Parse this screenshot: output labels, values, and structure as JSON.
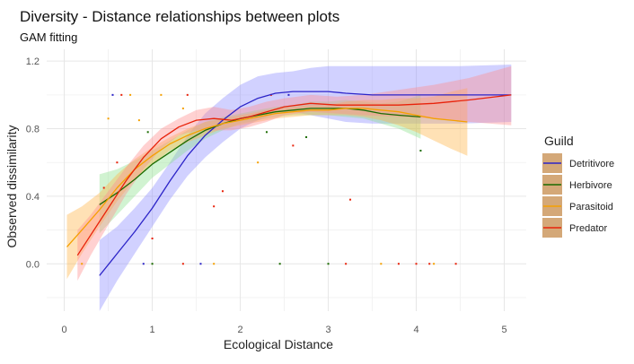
{
  "chart_data": {
    "type": "line",
    "title": "Diversity - Distance relationships between plots",
    "subtitle": "GAM fitting",
    "xlabel": "Ecological Distance",
    "ylabel": "Observed dissimilarity",
    "xlim": [
      -0.2,
      5.25
    ],
    "ylim": [
      -0.28,
      1.27
    ],
    "x_ticks": [
      0,
      1,
      2,
      3,
      4,
      5
    ],
    "y_ticks": [
      0.0,
      0.4,
      0.8,
      1.2
    ],
    "x_tick_labels": [
      "0",
      "1",
      "2",
      "3",
      "4",
      "5"
    ],
    "y_tick_labels": [
      "0.0",
      "0.4",
      "0.8",
      "1.2"
    ],
    "grid": true,
    "legend": {
      "title": "Guild",
      "position": "right"
    },
    "series": [
      {
        "name": "Detritivore",
        "color": "#2c24c8",
        "band_color": "#8c8cff",
        "x": [
          0.4,
          0.6,
          0.8,
          1.0,
          1.2,
          1.4,
          1.6,
          1.8,
          2.0,
          2.2,
          2.4,
          2.6,
          2.8,
          3.0,
          3.2,
          3.5,
          4.0,
          4.5,
          5.08
        ],
        "y": [
          -0.07,
          0.06,
          0.19,
          0.33,
          0.49,
          0.64,
          0.76,
          0.85,
          0.93,
          0.98,
          1.01,
          1.02,
          1.02,
          1.02,
          1.01,
          1.0,
          1.0,
          1.0,
          1.0
        ],
        "lower": [
          -0.28,
          -0.1,
          0.06,
          0.22,
          0.38,
          0.52,
          0.63,
          0.72,
          0.8,
          0.85,
          0.89,
          0.9,
          0.88,
          0.86,
          0.84,
          0.83,
          0.83,
          0.83,
          0.84
        ],
        "upper": [
          0.14,
          0.22,
          0.33,
          0.45,
          0.6,
          0.76,
          0.89,
          0.98,
          1.06,
          1.11,
          1.13,
          1.14,
          1.16,
          1.17,
          1.17,
          1.17,
          1.17,
          1.17,
          1.18
        ]
      },
      {
        "name": "Herbivore",
        "color": "#1a6b00",
        "band_color": "#8ce08c",
        "x": [
          0.4,
          0.6,
          0.8,
          1.0,
          1.2,
          1.4,
          1.6,
          1.8,
          2.0,
          2.2,
          2.4,
          2.6,
          2.8,
          3.0,
          3.2,
          3.4,
          3.6,
          3.8,
          4.05
        ],
        "y": [
          0.35,
          0.42,
          0.5,
          0.59,
          0.66,
          0.73,
          0.79,
          0.83,
          0.86,
          0.88,
          0.9,
          0.91,
          0.92,
          0.92,
          0.92,
          0.91,
          0.89,
          0.88,
          0.87
        ],
        "lower": [
          0.18,
          0.29,
          0.4,
          0.51,
          0.59,
          0.67,
          0.74,
          0.79,
          0.83,
          0.85,
          0.87,
          0.88,
          0.88,
          0.88,
          0.87,
          0.86,
          0.83,
          0.8,
          0.74
        ],
        "upper": [
          0.53,
          0.56,
          0.61,
          0.67,
          0.73,
          0.79,
          0.84,
          0.87,
          0.89,
          0.91,
          0.93,
          0.94,
          0.96,
          0.96,
          0.97,
          0.96,
          0.95,
          0.96,
          1.0
        ]
      },
      {
        "name": "Parasitoid",
        "color": "#f5a000",
        "band_color": "#ffb347",
        "x": [
          0.03,
          0.2,
          0.4,
          0.6,
          0.8,
          1.0,
          1.2,
          1.4,
          1.6,
          1.8,
          2.0,
          2.2,
          2.4,
          2.6,
          2.8,
          3.0,
          3.2,
          3.4,
          3.6,
          3.8,
          4.0,
          4.2,
          4.4,
          4.58
        ],
        "y": [
          0.1,
          0.2,
          0.32,
          0.45,
          0.56,
          0.64,
          0.71,
          0.76,
          0.8,
          0.83,
          0.85,
          0.87,
          0.89,
          0.9,
          0.91,
          0.91,
          0.92,
          0.92,
          0.91,
          0.9,
          0.88,
          0.86,
          0.85,
          0.84
        ],
        "lower": [
          -0.09,
          0.06,
          0.22,
          0.37,
          0.5,
          0.59,
          0.67,
          0.72,
          0.76,
          0.8,
          0.82,
          0.84,
          0.86,
          0.87,
          0.88,
          0.88,
          0.88,
          0.87,
          0.85,
          0.82,
          0.78,
          0.73,
          0.68,
          0.64
        ],
        "upper": [
          0.29,
          0.34,
          0.42,
          0.53,
          0.62,
          0.69,
          0.75,
          0.8,
          0.84,
          0.86,
          0.88,
          0.9,
          0.92,
          0.93,
          0.94,
          0.94,
          0.96,
          0.97,
          0.97,
          0.98,
          0.98,
          0.99,
          1.02,
          1.04
        ]
      },
      {
        "name": "Predator",
        "color": "#e8220a",
        "band_color": "#ff8c8c",
        "x": [
          0.15,
          0.3,
          0.5,
          0.7,
          0.9,
          1.1,
          1.3,
          1.5,
          1.7,
          1.9,
          2.1,
          2.3,
          2.5,
          2.8,
          3.1,
          3.4,
          3.8,
          4.2,
          4.6,
          5.08
        ],
        "y": [
          0.05,
          0.17,
          0.33,
          0.49,
          0.63,
          0.74,
          0.81,
          0.85,
          0.86,
          0.85,
          0.87,
          0.9,
          0.93,
          0.95,
          0.94,
          0.94,
          0.94,
          0.95,
          0.97,
          1.0
        ],
        "lower": [
          -0.1,
          0.05,
          0.23,
          0.41,
          0.56,
          0.68,
          0.76,
          0.79,
          0.79,
          0.79,
          0.81,
          0.84,
          0.88,
          0.9,
          0.89,
          0.88,
          0.87,
          0.86,
          0.84,
          0.82
        ],
        "upper": [
          0.2,
          0.29,
          0.43,
          0.57,
          0.7,
          0.8,
          0.86,
          0.91,
          0.93,
          0.91,
          0.93,
          0.96,
          0.98,
          1.0,
          0.99,
          1.0,
          1.03,
          1.06,
          1.1,
          1.17
        ]
      }
    ],
    "points": [
      {
        "series": "Detritivore",
        "x": 0.55,
        "y": 1.0
      },
      {
        "series": "Detritivore",
        "x": 0.9,
        "y": 0.0
      },
      {
        "series": "Detritivore",
        "x": 1.55,
        "y": 0.0
      },
      {
        "series": "Detritivore",
        "x": 2.55,
        "y": 1.0
      },
      {
        "series": "Herbivore",
        "x": 0.95,
        "y": 0.78
      },
      {
        "series": "Herbivore",
        "x": 1.0,
        "y": 0.0
      },
      {
        "series": "Herbivore",
        "x": 2.3,
        "y": 0.78
      },
      {
        "series": "Herbivore",
        "x": 2.45,
        "y": 0.0
      },
      {
        "series": "Herbivore",
        "x": 2.75,
        "y": 0.75
      },
      {
        "series": "Herbivore",
        "x": 3.0,
        "y": 0.0
      },
      {
        "series": "Herbivore",
        "x": 4.05,
        "y": 0.67
      },
      {
        "series": "Parasitoid",
        "x": 0.2,
        "y": 0.0
      },
      {
        "series": "Parasitoid",
        "x": 0.5,
        "y": 0.86
      },
      {
        "series": "Parasitoid",
        "x": 0.75,
        "y": 1.0
      },
      {
        "series": "Parasitoid",
        "x": 0.85,
        "y": 0.85
      },
      {
        "series": "Parasitoid",
        "x": 1.1,
        "y": 1.0
      },
      {
        "series": "Parasitoid",
        "x": 1.35,
        "y": 0.92
      },
      {
        "series": "Parasitoid",
        "x": 1.7,
        "y": 0.0
      },
      {
        "series": "Parasitoid",
        "x": 2.2,
        "y": 0.6
      },
      {
        "series": "Parasitoid",
        "x": 3.6,
        "y": 0.0
      },
      {
        "series": "Parasitoid",
        "x": 4.2,
        "y": 0.0
      },
      {
        "series": "Predator",
        "x": 0.45,
        "y": 0.45
      },
      {
        "series": "Predator",
        "x": 0.6,
        "y": 0.6
      },
      {
        "series": "Predator",
        "x": 0.65,
        "y": 1.0
      },
      {
        "series": "Predator",
        "x": 1.0,
        "y": 0.15
      },
      {
        "series": "Predator",
        "x": 1.35,
        "y": 0.0
      },
      {
        "series": "Predator",
        "x": 1.4,
        "y": 1.0
      },
      {
        "series": "Predator",
        "x": 1.7,
        "y": 0.34
      },
      {
        "series": "Predator",
        "x": 1.8,
        "y": 0.43
      },
      {
        "series": "Predator",
        "x": 2.35,
        "y": 1.0
      },
      {
        "series": "Predator",
        "x": 2.6,
        "y": 0.7
      },
      {
        "series": "Predator",
        "x": 3.25,
        "y": 0.38
      },
      {
        "series": "Predator",
        "x": 3.2,
        "y": 0.0
      },
      {
        "series": "Predator",
        "x": 3.8,
        "y": 0.0
      },
      {
        "series": "Predator",
        "x": 4.0,
        "y": 0.0
      },
      {
        "series": "Predator",
        "x": 4.15,
        "y": 0.0
      },
      {
        "series": "Predator",
        "x": 4.45,
        "y": 0.0
      }
    ]
  }
}
